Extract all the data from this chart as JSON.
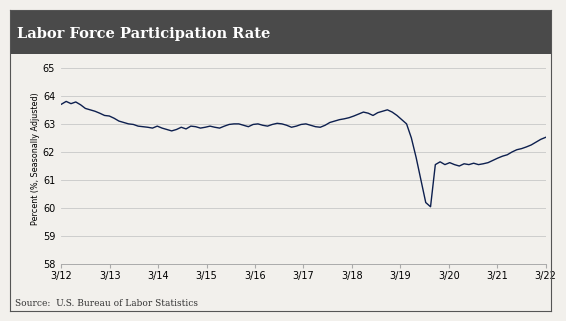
{
  "title": "Labor Force Participation Rate",
  "ylabel": "Percent (%, Seasonally Adjusted)",
  "source": "Source:  U.S. Bureau of Labor Statistics",
  "line_color": "#0d1f4e",
  "bg_color": "#f2f0ec",
  "title_bg_color": "#4a4a4a",
  "title_text_color": "#ffffff",
  "ylim": [
    58.0,
    65.5
  ],
  "yticks": [
    58,
    59,
    60,
    61,
    62,
    63,
    64,
    65
  ],
  "x_tick_labels": [
    "3/12",
    "3/13",
    "3/14",
    "3/15",
    "3/16",
    "3/17",
    "3/18",
    "3/19",
    "3/20",
    "3/21",
    "3/22"
  ],
  "values": [
    63.7,
    63.8,
    63.72,
    63.78,
    63.68,
    63.55,
    63.5,
    63.45,
    63.38,
    63.3,
    63.28,
    63.2,
    63.1,
    63.05,
    63.0,
    62.98,
    62.92,
    62.9,
    62.88,
    62.85,
    62.92,
    62.85,
    62.8,
    62.75,
    62.8,
    62.88,
    62.82,
    62.92,
    62.9,
    62.85,
    62.88,
    62.92,
    62.88,
    62.85,
    62.92,
    62.98,
    63.0,
    63.0,
    62.95,
    62.9,
    62.98,
    63.0,
    62.95,
    62.92,
    62.98,
    63.02,
    63.0,
    62.95,
    62.88,
    62.92,
    62.98,
    63.0,
    62.95,
    62.9,
    62.88,
    62.95,
    63.05,
    63.1,
    63.15,
    63.18,
    63.22,
    63.28,
    63.35,
    63.42,
    63.38,
    63.3,
    63.4,
    63.45,
    63.5,
    63.42,
    63.3,
    63.15,
    63.0,
    62.5,
    61.8,
    61.0,
    60.2,
    60.05,
    61.55,
    61.65,
    61.55,
    61.62,
    61.55,
    61.5,
    61.58,
    61.55,
    61.6,
    61.55,
    61.58,
    61.62,
    61.7,
    61.78,
    61.85,
    61.9,
    62.0,
    62.08,
    62.12,
    62.18,
    62.25,
    62.35,
    62.45,
    62.52
  ]
}
